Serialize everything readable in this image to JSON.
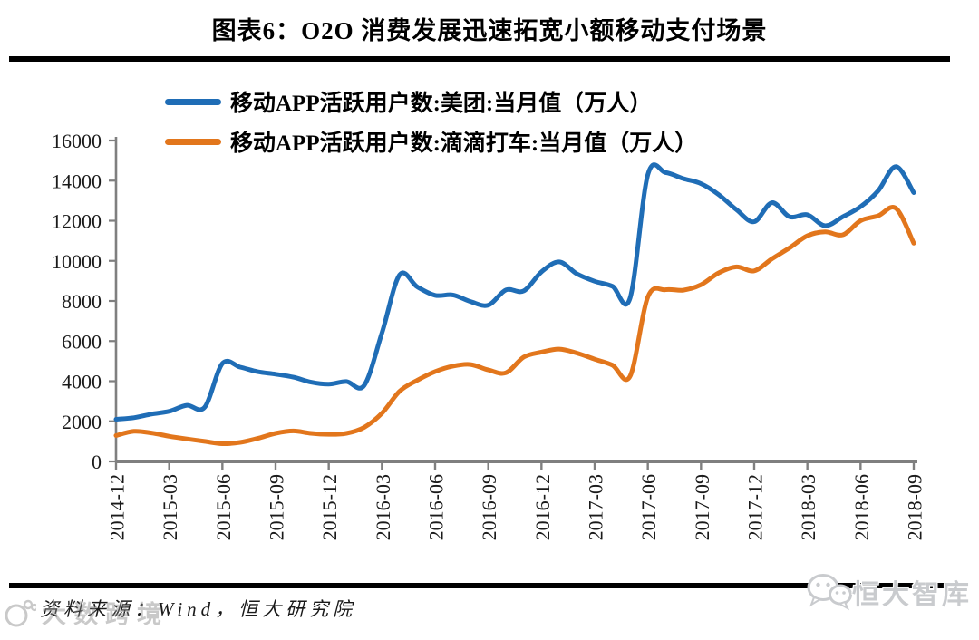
{
  "title": "图表6：O2O 消费发展迅速拓宽小额移动支付场景",
  "legend": [
    {
      "label": "移动APP活跃用户数:美团:当月值（万人）",
      "color": "#1f6db6"
    },
    {
      "label": "移动APP活跃用户数:滴滴打车:当月值（万人）",
      "color": "#e2761c"
    }
  ],
  "footer": {
    "source_label": "资料来源：Wind，恒大研究院"
  },
  "watermarks": {
    "bottom_left_text": "大数跨境",
    "bottom_right_text": "恒大智库"
  },
  "colors": {
    "axis": "#7f7f7f",
    "tick_label": "#1a1a1a",
    "rule": "#000000",
    "meituan_line": "#1f6db6",
    "didi_line": "#e2761c",
    "brand_gray": "#c9cbce"
  },
  "chart_data": {
    "type": "line",
    "smoothed": true,
    "grid": false,
    "legend_position": "top-left-inside",
    "ylim": [
      0,
      16000
    ],
    "ytick_step": 2000,
    "xtick_every": 3,
    "x": [
      "2014-12",
      "2015-01",
      "2015-02",
      "2015-03",
      "2015-04",
      "2015-05",
      "2015-06",
      "2015-07",
      "2015-08",
      "2015-09",
      "2015-10",
      "2015-11",
      "2015-12",
      "2016-01",
      "2016-02",
      "2016-03",
      "2016-04",
      "2016-05",
      "2016-06",
      "2016-07",
      "2016-08",
      "2016-09",
      "2016-10",
      "2016-11",
      "2016-12",
      "2017-01",
      "2017-02",
      "2017-03",
      "2017-04",
      "2017-05",
      "2017-06",
      "2017-07",
      "2017-08",
      "2017-09",
      "2017-10",
      "2017-11",
      "2017-12",
      "2018-01",
      "2018-02",
      "2018-03",
      "2018-04",
      "2018-05",
      "2018-06",
      "2018-07",
      "2018-08",
      "2018-09"
    ],
    "series": [
      {
        "name": "移动APP活跃用户数:美团:当月值（万人）",
        "color": "#1f6db6",
        "values": [
          2100,
          2180,
          2360,
          2500,
          2800,
          2700,
          4880,
          4700,
          4470,
          4350,
          4200,
          3950,
          3850,
          3980,
          3790,
          6400,
          9300,
          8700,
          8280,
          8300,
          7970,
          7790,
          8550,
          8500,
          9450,
          9950,
          9350,
          8980,
          8730,
          8150,
          14300,
          14400,
          14100,
          13850,
          13300,
          12550,
          11950,
          12900,
          12200,
          12300,
          11750,
          12200,
          12700,
          13500,
          14700,
          13400
        ]
      },
      {
        "name": "移动APP活跃用户数:滴滴打车:当月值（万人）",
        "color": "#e2761c",
        "values": [
          1290,
          1500,
          1420,
          1250,
          1120,
          1000,
          880,
          950,
          1150,
          1400,
          1520,
          1400,
          1350,
          1400,
          1700,
          2400,
          3500,
          4050,
          4480,
          4750,
          4830,
          4560,
          4420,
          5200,
          5450,
          5600,
          5400,
          5100,
          4800,
          4250,
          8200,
          8560,
          8540,
          8810,
          9400,
          9700,
          9500,
          10100,
          10650,
          11250,
          11450,
          11300,
          12000,
          12250,
          12620,
          10880
        ]
      }
    ]
  }
}
